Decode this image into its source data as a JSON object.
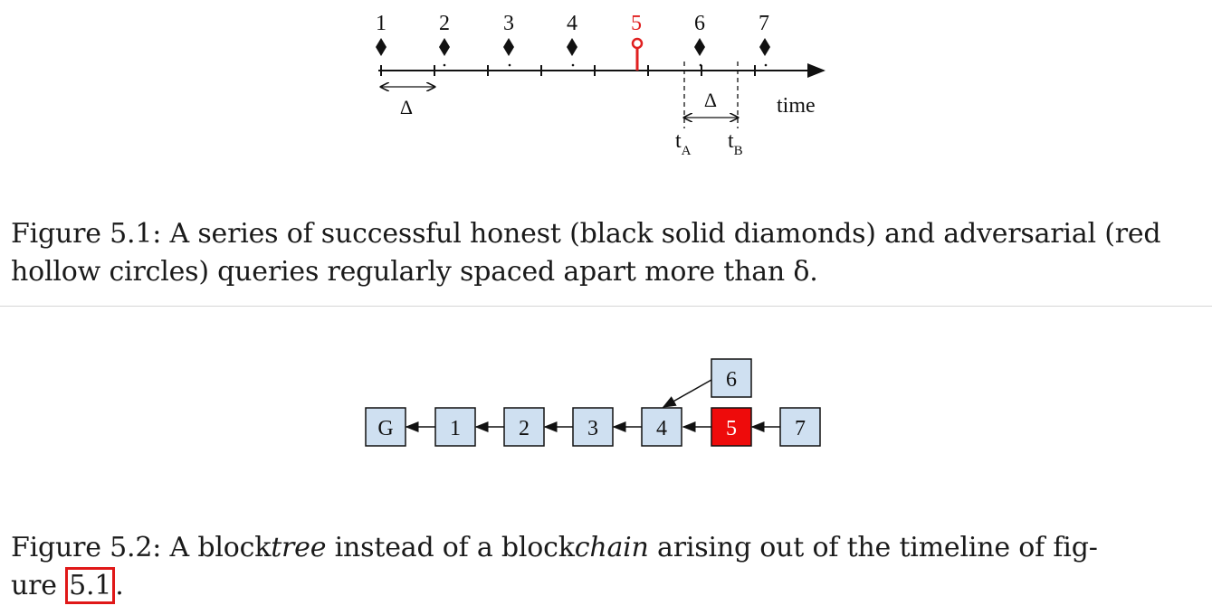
{
  "figure1": {
    "query_labels": [
      "1",
      "2",
      "3",
      "4",
      "5",
      "6",
      "7"
    ],
    "adversarial_query": "5",
    "delta_label": "Δ",
    "delta_label_2": "Δ",
    "axis_label": "time",
    "ta_main": "t",
    "ta_sub": "A",
    "tb_main": "t",
    "tb_sub": "B",
    "colors": {
      "honest": "#111111",
      "adversarial": "#e02020"
    },
    "caption": {
      "prefix": "Figure 5.1:",
      "text": "A series of successful honest (black solid diamonds) and adversarial (red hollow circles) queries regularly spaced apart more than δ."
    }
  },
  "figure2": {
    "blocks": [
      "G",
      "1",
      "2",
      "3",
      "4",
      "5",
      "7"
    ],
    "fork_block": "6",
    "adversarial_block": "5",
    "colors": {
      "block_fill": "#cfe0f1",
      "adversarial_fill": "#ee0b0b"
    },
    "caption": {
      "prefix": "Figure 5.2:",
      "part1": "A block",
      "italic1": "tree",
      "part2": " instead of a block",
      "italic2": "chain",
      "part3": " arising out of the timeline of fig-",
      "part4": "ure ",
      "ref": "5.1",
      "end": "."
    }
  }
}
